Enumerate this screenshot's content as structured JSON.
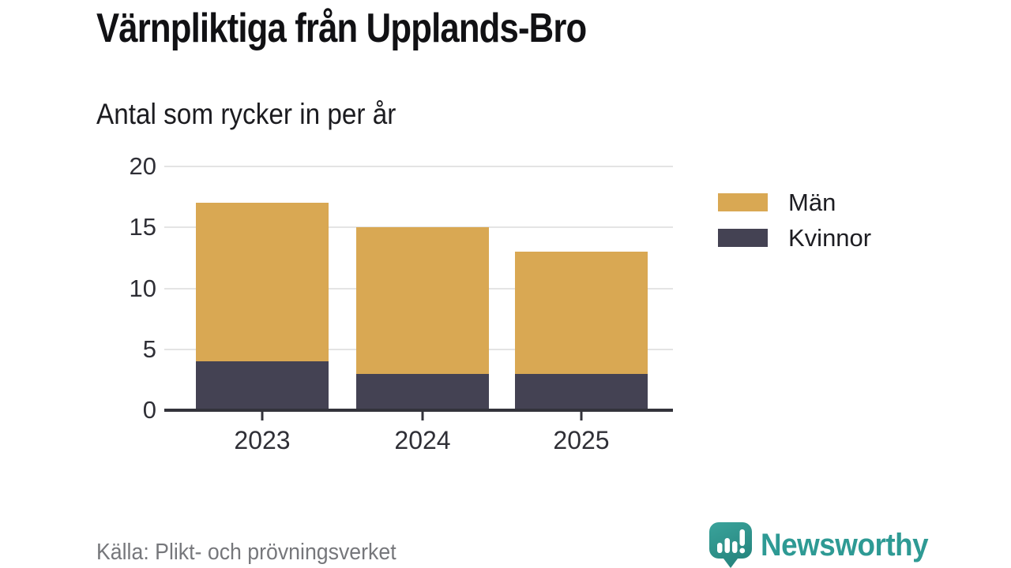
{
  "header": {
    "title": "Värnpliktiga från Upplands-Bro",
    "subtitle": "Antal som rycker in per år"
  },
  "chart_data": {
    "type": "bar",
    "stacked": true,
    "title": "Värnpliktiga från Upplands-Bro",
    "subtitle": "Antal som rycker in per år",
    "xlabel": "",
    "ylabel": "",
    "categories": [
      "2023",
      "2024",
      "2025"
    ],
    "series": [
      {
        "name": "Kvinnor",
        "color": "#444253",
        "values": [
          4,
          3,
          3
        ]
      },
      {
        "name": "Män",
        "color": "#D9A853",
        "values": [
          13,
          12,
          10
        ]
      }
    ],
    "totals": [
      17,
      15,
      13
    ],
    "ylim": [
      0,
      20
    ],
    "yticks": [
      0,
      5,
      10,
      15,
      20
    ],
    "grid": "horizontal",
    "legend_position": "right",
    "legend_order_top_to_bottom": [
      "Män",
      "Kvinnor"
    ]
  },
  "colors": {
    "men": "#D9A853",
    "women": "#444253",
    "axis": "#33333b",
    "gridline": "#e4e4e4",
    "tick_text": "#2f2f36",
    "brand_teal": "#2e9a94",
    "source_gray": "#76777b",
    "background": "#ffffff"
  },
  "footer": {
    "source": "Källa: Plikt- och prövningsverket",
    "brand_name": "Newsworthy"
  }
}
